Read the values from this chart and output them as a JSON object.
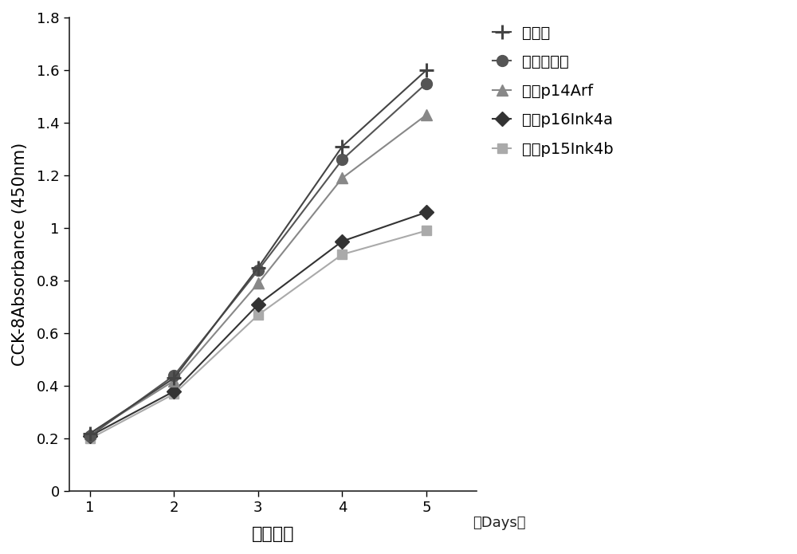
{
  "days": [
    1,
    2,
    3,
    4,
    5
  ],
  "series": [
    {
      "label": "无转染",
      "values": [
        0.22,
        0.43,
        0.85,
        1.31,
        1.6
      ],
      "color": "#444444",
      "marker": "plus",
      "linewidth": 1.5
    },
    {
      "label": "转染空质粒",
      "values": [
        0.21,
        0.44,
        0.84,
        1.26,
        1.55
      ],
      "color": "#555555",
      "marker": "circle",
      "linewidth": 1.5
    },
    {
      "label": "转染p14Arf",
      "values": [
        0.22,
        0.42,
        0.79,
        1.19,
        1.43
      ],
      "color": "#888888",
      "marker": "triangle",
      "linewidth": 1.5
    },
    {
      "label": "转染p16Ink4a",
      "values": [
        0.21,
        0.38,
        0.71,
        0.95,
        1.06
      ],
      "color": "#333333",
      "marker": "diamond",
      "linewidth": 1.5
    },
    {
      "label": "转染p15Ink4b",
      "values": [
        0.2,
        0.37,
        0.67,
        0.9,
        0.99
      ],
      "color": "#aaaaaa",
      "marker": "square",
      "linewidth": 1.5
    }
  ],
  "xlabel": "培养时间",
  "xlabel_days": "（Days）",
  "ylabel": "CCK-8Absorbance (450nm)",
  "ylim": [
    0,
    1.8
  ],
  "yticks": [
    0,
    0.2,
    0.4,
    0.6,
    0.8,
    1.0,
    1.2,
    1.4,
    1.6,
    1.8
  ],
  "xlim": [
    0.75,
    5.6
  ],
  "xticks": [
    1,
    2,
    3,
    4,
    5
  ],
  "background_color": "#ffffff",
  "marker_size": 9,
  "label_fontsize": 15,
  "tick_fontsize": 13,
  "legend_fontsize": 14
}
